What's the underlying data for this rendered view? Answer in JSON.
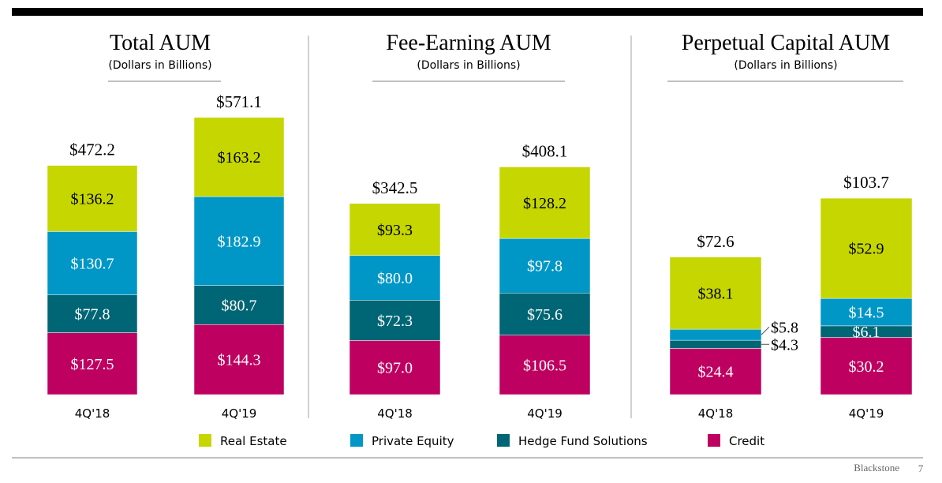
{
  "footer": {
    "brand": "Blackstone",
    "page": "7"
  },
  "legend": [
    {
      "name": "Real Estate",
      "color": "#c5d600"
    },
    {
      "name": "Private Equity",
      "color": "#0097c7"
    },
    {
      "name": "Hedge Fund Solutions",
      "color": "#006574"
    },
    {
      "name": "Credit",
      "color": "#be0060"
    }
  ],
  "chart_data": [
    {
      "type": "bar",
      "stacked": true,
      "title": "Total AUM",
      "subtitle": "(Dollars in Billions)",
      "categories": [
        "4Q'18",
        "4Q'19"
      ],
      "totals": [
        "$472.2",
        "$571.1"
      ],
      "series": [
        {
          "name": "Credit",
          "values": [
            127.5,
            144.3
          ],
          "labels": [
            "$127.5",
            "$144.3"
          ]
        },
        {
          "name": "Hedge Fund Solutions",
          "values": [
            77.8,
            80.7
          ],
          "labels": [
            "$77.8",
            "$80.7"
          ]
        },
        {
          "name": "Private Equity",
          "values": [
            130.7,
            182.9
          ],
          "labels": [
            "$130.7",
            "$182.9"
          ]
        },
        {
          "name": "Real Estate",
          "values": [
            136.2,
            163.2
          ],
          "labels": [
            "$136.2",
            "$163.2"
          ]
        }
      ]
    },
    {
      "type": "bar",
      "stacked": true,
      "title": "Fee-Earning AUM",
      "subtitle": "(Dollars in Billions)",
      "categories": [
        "4Q'18",
        "4Q'19"
      ],
      "totals": [
        "$342.5",
        "$408.1"
      ],
      "series": [
        {
          "name": "Credit",
          "values": [
            97.0,
            106.5
          ],
          "labels": [
            "$97.0",
            "$106.5"
          ]
        },
        {
          "name": "Hedge Fund Solutions",
          "values": [
            72.3,
            75.6
          ],
          "labels": [
            "$72.3",
            "$75.6"
          ]
        },
        {
          "name": "Private Equity",
          "values": [
            80.0,
            97.8
          ],
          "labels": [
            "$80.0",
            "$97.8"
          ]
        },
        {
          "name": "Real Estate",
          "values": [
            93.3,
            128.2
          ],
          "labels": [
            "$93.3",
            "$128.2"
          ]
        }
      ]
    },
    {
      "type": "bar",
      "stacked": true,
      "title": "Perpetual Capital AUM",
      "subtitle": "(Dollars in Billions)",
      "categories": [
        "4Q'18",
        "4Q'19"
      ],
      "totals": [
        "$72.6",
        "$103.7"
      ],
      "series": [
        {
          "name": "Credit",
          "values": [
            24.4,
            30.2
          ],
          "labels": [
            "$24.4",
            "$30.2"
          ]
        },
        {
          "name": "Hedge Fund Solutions",
          "values": [
            4.3,
            6.1
          ],
          "labels": [
            "$4.3",
            "$6.1"
          ]
        },
        {
          "name": "Private Equity",
          "values": [
            5.8,
            14.5
          ],
          "labels": [
            "$5.8",
            "$14.5"
          ]
        },
        {
          "name": "Real Estate",
          "values": [
            38.1,
            52.9
          ],
          "labels": [
            "$38.1",
            "$52.9"
          ]
        }
      ]
    }
  ]
}
